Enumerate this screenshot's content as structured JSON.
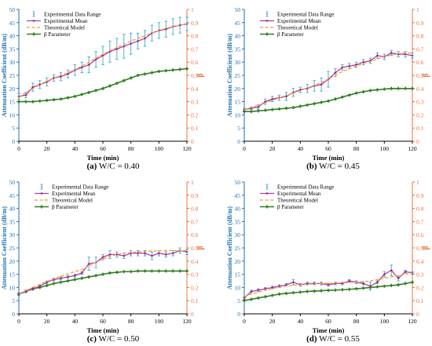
{
  "colors": {
    "left_axis": "#1f6fb2",
    "right_axis": "#e8743b",
    "error_bar": "#41a9c9",
    "mean": "#c0399a",
    "mean_marker": "#7a1f86",
    "theory": "#f0a030",
    "beta": "#2e7d1e"
  },
  "captions": [
    {
      "letter": "(a)",
      "text": "W/C = 0.40"
    },
    {
      "letter": "(b)",
      "text": "W/C = 0.45"
    },
    {
      "letter": "(c)",
      "text": "W/C = 0.50"
    },
    {
      "letter": "(d)",
      "text": "W/C = 0.55"
    }
  ],
  "chart_data": [
    {
      "type": "line",
      "xlabel": "Time (min)",
      "ylabel": "Attenuation Coefficient (dB/m)",
      "y2label": "β",
      "xlim": [
        0,
        120
      ],
      "xticks": [
        0,
        20,
        40,
        60,
        80,
        100,
        120
      ],
      "ylim": [
        0,
        50
      ],
      "yticks": [
        0,
        5,
        10,
        15,
        20,
        25,
        30,
        35,
        40,
        45,
        50
      ],
      "y2lim": [
        0,
        1
      ],
      "y2ticks": [
        "0",
        "0.1",
        "0.2",
        "0.3",
        "0.4",
        "0.5",
        "0.6",
        "0.7",
        "0.8",
        "0.9",
        "1"
      ],
      "legend": [
        "Experimental Data Range",
        "Experimental Mean",
        "Theoretical Model",
        "β Parameter"
      ],
      "legend_position": "top-left",
      "x": [
        0,
        5,
        10,
        15,
        20,
        25,
        30,
        35,
        40,
        45,
        50,
        55,
        60,
        65,
        70,
        75,
        80,
        85,
        90,
        95,
        100,
        105,
        110,
        115,
        120
      ],
      "mean": [
        17,
        17.5,
        20.5,
        21.5,
        22.5,
        24,
        24.5,
        25.5,
        27,
        28,
        29,
        31,
        32.5,
        34,
        35,
        36,
        37,
        38,
        39,
        41,
        42,
        42.5,
        43.5,
        44,
        44.5
      ],
      "theory": [
        16.5,
        18.5,
        20,
        21.5,
        22.8,
        24,
        25,
        26,
        27.2,
        28.5,
        30,
        31.5,
        33,
        34.3,
        35.5,
        36.7,
        38,
        39,
        40,
        41,
        42,
        42.8,
        43.5,
        44,
        44.5
      ],
      "error": [
        1,
        1,
        1.5,
        1.5,
        1.5,
        1.2,
        1.5,
        1.5,
        2,
        2,
        3,
        3,
        3.5,
        4,
        4,
        4.5,
        4,
        3,
        3,
        3,
        3,
        3,
        3,
        3,
        2.5
      ],
      "beta": [
        0.3,
        0.3,
        0.3,
        0.305,
        0.31,
        0.315,
        0.32,
        0.33,
        0.34,
        0.355,
        0.37,
        0.385,
        0.4,
        0.42,
        0.44,
        0.46,
        0.48,
        0.5,
        0.51,
        0.52,
        0.53,
        0.535,
        0.54,
        0.545,
        0.55
      ]
    },
    {
      "type": "line",
      "xlabel": "Time (min)",
      "ylabel": "Attenuation Coefficient (dB/m)",
      "y2label": "β",
      "xlim": [
        0,
        120
      ],
      "xticks": [
        0,
        20,
        40,
        60,
        80,
        100,
        120
      ],
      "ylim": [
        0,
        50
      ],
      "yticks": [
        0,
        5,
        10,
        15,
        20,
        25,
        30,
        35,
        40,
        45,
        50
      ],
      "y2lim": [
        0,
        1
      ],
      "y2ticks": [
        "0",
        "0.1",
        "0.2",
        "0.3",
        "0.4",
        "0.5",
        "0.6",
        "0.7",
        "0.8",
        "0.9",
        "1"
      ],
      "legend": [
        "Experimental Data Range",
        "Experimental Mean",
        "Theoretical Model",
        "β Parameter"
      ],
      "legend_position": "top-center",
      "x": [
        0,
        5,
        10,
        15,
        20,
        25,
        30,
        35,
        40,
        45,
        50,
        55,
        60,
        65,
        70,
        75,
        80,
        85,
        90,
        95,
        100,
        105,
        110,
        115,
        120
      ],
      "mean": [
        12,
        12.5,
        13,
        15,
        16,
        16.5,
        17,
        18.5,
        19.5,
        20,
        21,
        21.5,
        23.5,
        26,
        28,
        28.5,
        29,
        30,
        30.5,
        32.5,
        32,
        33.5,
        33,
        33,
        32.5
      ],
      "theory": [
        12,
        12.8,
        13.6,
        14.6,
        15.5,
        16.4,
        17.3,
        18.3,
        19.2,
        20.2,
        21.2,
        22.3,
        23.6,
        25,
        26.4,
        27.5,
        28.5,
        29.5,
        30.3,
        31.2,
        32,
        32.7,
        33.2,
        33.5,
        33.5
      ],
      "error": [
        0.5,
        0.5,
        0.8,
        1,
        1,
        1,
        1.5,
        1.5,
        1,
        1.5,
        2,
        2.5,
        3,
        1.5,
        1,
        1,
        1,
        1,
        1,
        1,
        1,
        1,
        1,
        1,
        1
      ],
      "beta": [
        0.225,
        0.225,
        0.23,
        0.235,
        0.24,
        0.245,
        0.25,
        0.255,
        0.265,
        0.275,
        0.285,
        0.295,
        0.305,
        0.32,
        0.335,
        0.35,
        0.365,
        0.375,
        0.385,
        0.39,
        0.395,
        0.4,
        0.4,
        0.4,
        0.4
      ]
    },
    {
      "type": "line",
      "xlabel": "Time (min)",
      "ylabel": "Attenuation Coefficient (dB/m)",
      "y2label": "β",
      "xlim": [
        0,
        120
      ],
      "xticks": [
        0,
        20,
        40,
        60,
        80,
        100,
        120
      ],
      "ylim": [
        0,
        50
      ],
      "yticks": [
        0,
        5,
        10,
        15,
        20,
        25,
        30,
        35,
        40,
        45,
        50
      ],
      "y2lim": [
        0,
        1
      ],
      "y2ticks": [
        "0",
        "0.1",
        "0.2",
        "0.3",
        "0.4",
        "0.5",
        "0.6",
        "0.7",
        "0.8",
        "0.9",
        "1"
      ],
      "legend": [
        "Experimental Data Range",
        "Experimental Mean",
        "Theoretical Model",
        "β Parameter"
      ],
      "legend_position": "top-center",
      "x": [
        0,
        5,
        10,
        15,
        20,
        25,
        30,
        35,
        40,
        45,
        50,
        55,
        60,
        65,
        70,
        75,
        80,
        85,
        90,
        95,
        100,
        105,
        110,
        115,
        120
      ],
      "mean": [
        7.5,
        8.5,
        9.5,
        10.5,
        12,
        13,
        13.5,
        14,
        14.5,
        15.5,
        19,
        19.5,
        21.5,
        22.5,
        22.5,
        22,
        23,
        23,
        23,
        22,
        23,
        22.5,
        23,
        24,
        23.5
      ],
      "theory": [
        7.5,
        8.8,
        10,
        11.2,
        12.3,
        13.3,
        14.3,
        15.2,
        16,
        16.8,
        18.2,
        19.6,
        20.8,
        21.8,
        22.5,
        23,
        23.3,
        23.5,
        23.7,
        23.8,
        23.9,
        24,
        24,
        24,
        24
      ],
      "error": [
        0.5,
        0.5,
        0.5,
        0.5,
        0.5,
        0.5,
        0.5,
        0.5,
        0.5,
        0.5,
        2.5,
        2,
        1,
        1.5,
        1,
        1,
        1,
        1,
        1,
        1.5,
        1,
        1,
        1,
        1,
        1
      ],
      "beta": [
        0.15,
        0.17,
        0.19,
        0.2,
        0.215,
        0.23,
        0.24,
        0.25,
        0.26,
        0.27,
        0.28,
        0.29,
        0.3,
        0.31,
        0.315,
        0.32,
        0.32,
        0.325,
        0.325,
        0.325,
        0.325,
        0.325,
        0.325,
        0.325,
        0.325
      ]
    },
    {
      "type": "line",
      "xlabel": "Time (min)",
      "ylabel": "Attenuation Coefficient (dB/m)",
      "y2label": "β",
      "xlim": [
        0,
        120
      ],
      "xticks": [
        0,
        20,
        40,
        60,
        80,
        100,
        120
      ],
      "ylim": [
        0,
        50
      ],
      "yticks": [
        0,
        5,
        10,
        15,
        20,
        25,
        30,
        35,
        40,
        45,
        50
      ],
      "y2lim": [
        0,
        1
      ],
      "y2ticks": [
        "0",
        "0.1",
        "0.2",
        "0.3",
        "0.4",
        "0.5",
        "0.6",
        "0.7",
        "0.8",
        "0.9",
        "1"
      ],
      "legend": [
        "Experimental Data Range",
        "Experimental Mean",
        "Theoretical Model",
        "β Parameter"
      ],
      "legend_position": "top-center",
      "x": [
        0,
        5,
        10,
        15,
        20,
        25,
        30,
        35,
        40,
        45,
        50,
        55,
        60,
        65,
        70,
        75,
        80,
        85,
        90,
        95,
        100,
        105,
        110,
        115,
        120
      ],
      "mean": [
        6,
        8.5,
        9,
        9.5,
        10,
        10.5,
        11,
        12,
        11,
        11.5,
        11.5,
        11.5,
        11,
        11.5,
        11.5,
        12.5,
        12,
        11.5,
        10.5,
        12,
        15,
        16.5,
        13.5,
        16,
        15.5
      ],
      "theory": [
        6.5,
        7.5,
        8.3,
        9,
        9.6,
        10.1,
        10.5,
        10.8,
        11,
        11.2,
        11.4,
        11.5,
        11.6,
        11.7,
        11.8,
        11.9,
        12,
        12.2,
        12.5,
        13,
        13.5,
        14,
        14.5,
        15,
        15.5
      ],
      "error": [
        0.5,
        0.5,
        0.5,
        0.5,
        0.5,
        0.5,
        0.5,
        1,
        0.5,
        0.5,
        0.5,
        0.5,
        0.5,
        0.5,
        0.5,
        0.5,
        0.5,
        0.5,
        1.5,
        0.5,
        1,
        2,
        1,
        0.5,
        0.5
      ],
      "beta": [
        0.1,
        0.11,
        0.12,
        0.13,
        0.14,
        0.15,
        0.155,
        0.16,
        0.165,
        0.17,
        0.172,
        0.175,
        0.178,
        0.18,
        0.183,
        0.186,
        0.19,
        0.195,
        0.2,
        0.205,
        0.21,
        0.215,
        0.22,
        0.23,
        0.24
      ]
    }
  ]
}
